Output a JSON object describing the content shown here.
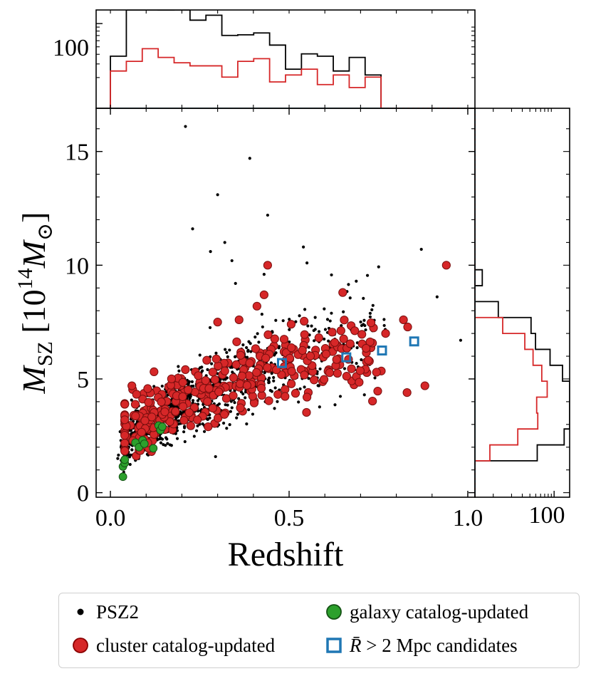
{
  "chart_data": {
    "type": "scatter",
    "xlabel": "Redshift",
    "ylabel": "M_SZ [10^14 M_⊙]",
    "xlim": [
      -0.04,
      1.02
    ],
    "ylim": [
      -0.2,
      16.9
    ],
    "x_ticks": [
      0.0,
      0.5,
      1.0
    ],
    "x_tick_labels": [
      "0.0",
      "0.5",
      "1.0"
    ],
    "y_ticks": [
      0,
      5,
      10,
      15
    ],
    "y_tick_labels": [
      "0",
      "5",
      "10",
      "15"
    ],
    "top_hist": {
      "ylabel_tick": "100",
      "log_scale": true
    },
    "right_hist": {
      "xlabel_tick": "100",
      "log_scale": true
    },
    "legend_placement": "below",
    "series": [
      {
        "name": "PSZ2",
        "marker": "dot",
        "color": "#000000",
        "generate": {
          "count": 1050,
          "z_range": [
            0.01,
            0.97
          ]
        },
        "extra_points": [
          [
            0.21,
            16.1
          ],
          [
            0.39,
            14.7
          ],
          [
            0.3,
            13.1
          ],
          [
            0.44,
            12.2
          ],
          [
            0.23,
            11.6
          ],
          [
            0.32,
            11.0
          ],
          [
            0.28,
            10.6
          ],
          [
            0.55,
            10.1
          ],
          [
            0.87,
            10.7
          ],
          [
            0.43,
            9.6
          ],
          [
            0.35,
            9.2
          ],
          [
            0.98,
            6.7
          ],
          [
            0.54,
            10.8
          ],
          [
            0.34,
            10.2
          ]
        ]
      },
      {
        "name": "cluster catalog-updated",
        "marker": "circle",
        "color": "#d62728",
        "edge": "#8b0000",
        "generate": {
          "count": 330,
          "z_range": [
            0.04,
            0.84
          ]
        },
        "extra_points": [
          [
            0.94,
            10.0
          ],
          [
            0.44,
            10.0
          ],
          [
            0.88,
            4.7
          ],
          [
            0.83,
            4.4
          ],
          [
            0.55,
            4.2
          ],
          [
            0.82,
            7.6
          ],
          [
            0.77,
            7.0
          ],
          [
            0.65,
            8.8
          ],
          [
            0.36,
            7.6
          ],
          [
            0.3,
            7.5
          ],
          [
            0.06,
            4.7
          ],
          [
            0.41,
            8.2
          ],
          [
            0.43,
            8.7
          ]
        ]
      },
      {
        "name": "galaxy catalog-updated",
        "marker": "circle",
        "color": "#2ca02c",
        "edge": "#145214",
        "points": [
          [
            0.035,
            0.7
          ],
          [
            0.035,
            1.15
          ],
          [
            0.04,
            1.3
          ],
          [
            0.04,
            1.45
          ],
          [
            0.07,
            2.2
          ],
          [
            0.08,
            2.0
          ],
          [
            0.09,
            2.3
          ],
          [
            0.095,
            2.15
          ],
          [
            0.12,
            1.95
          ],
          [
            0.135,
            2.95
          ],
          [
            0.14,
            2.75
          ],
          [
            0.145,
            2.9
          ]
        ]
      },
      {
        "name": "R̄ > 2 Mpc candidates",
        "marker": "square-open",
        "color": "#1f77b4",
        "points": [
          [
            0.48,
            5.7
          ],
          [
            0.66,
            5.95
          ],
          [
            0.76,
            6.25
          ],
          [
            0.85,
            6.65
          ]
        ]
      }
    ]
  },
  "legend": [
    {
      "label": "PSZ2"
    },
    {
      "label": "cluster catalog-updated"
    },
    {
      "label": "galaxy catalog-updated"
    },
    {
      "label_prefix": "R̄",
      "label_rest": " > 2 Mpc candidates"
    }
  ]
}
